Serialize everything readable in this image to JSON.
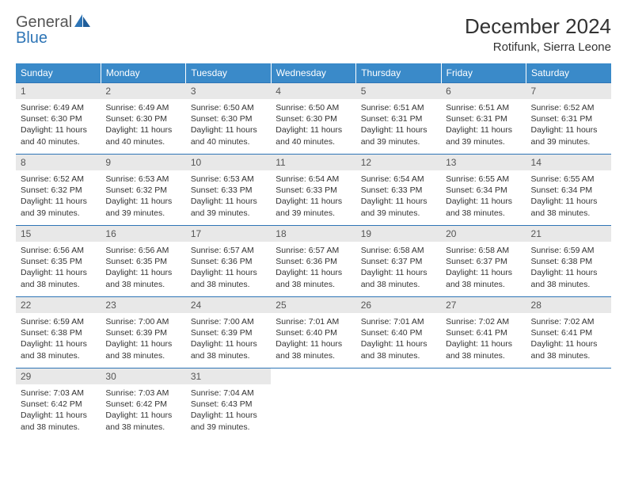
{
  "logo": {
    "general": "General",
    "blue": "Blue"
  },
  "title": "December 2024",
  "location": "Rotifunk, Sierra Leone",
  "colors": {
    "header_bg": "#3a8ac9",
    "header_text": "#ffffff",
    "border": "#2e75b6",
    "date_bg": "#e8e8e8",
    "body_text": "#333333",
    "logo_blue": "#2e75b6",
    "logo_gray": "#555555"
  },
  "day_names": [
    "Sunday",
    "Monday",
    "Tuesday",
    "Wednesday",
    "Thursday",
    "Friday",
    "Saturday"
  ],
  "labels": {
    "sunrise": "Sunrise:",
    "sunset": "Sunset:",
    "daylight": "Daylight:"
  },
  "days": [
    {
      "n": 1,
      "sunrise": "6:49 AM",
      "sunset": "6:30 PM",
      "daylight": "11 hours and 40 minutes."
    },
    {
      "n": 2,
      "sunrise": "6:49 AM",
      "sunset": "6:30 PM",
      "daylight": "11 hours and 40 minutes."
    },
    {
      "n": 3,
      "sunrise": "6:50 AM",
      "sunset": "6:30 PM",
      "daylight": "11 hours and 40 minutes."
    },
    {
      "n": 4,
      "sunrise": "6:50 AM",
      "sunset": "6:30 PM",
      "daylight": "11 hours and 40 minutes."
    },
    {
      "n": 5,
      "sunrise": "6:51 AM",
      "sunset": "6:31 PM",
      "daylight": "11 hours and 39 minutes."
    },
    {
      "n": 6,
      "sunrise": "6:51 AM",
      "sunset": "6:31 PM",
      "daylight": "11 hours and 39 minutes."
    },
    {
      "n": 7,
      "sunrise": "6:52 AM",
      "sunset": "6:31 PM",
      "daylight": "11 hours and 39 minutes."
    },
    {
      "n": 8,
      "sunrise": "6:52 AM",
      "sunset": "6:32 PM",
      "daylight": "11 hours and 39 minutes."
    },
    {
      "n": 9,
      "sunrise": "6:53 AM",
      "sunset": "6:32 PM",
      "daylight": "11 hours and 39 minutes."
    },
    {
      "n": 10,
      "sunrise": "6:53 AM",
      "sunset": "6:33 PM",
      "daylight": "11 hours and 39 minutes."
    },
    {
      "n": 11,
      "sunrise": "6:54 AM",
      "sunset": "6:33 PM",
      "daylight": "11 hours and 39 minutes."
    },
    {
      "n": 12,
      "sunrise": "6:54 AM",
      "sunset": "6:33 PM",
      "daylight": "11 hours and 39 minutes."
    },
    {
      "n": 13,
      "sunrise": "6:55 AM",
      "sunset": "6:34 PM",
      "daylight": "11 hours and 38 minutes."
    },
    {
      "n": 14,
      "sunrise": "6:55 AM",
      "sunset": "6:34 PM",
      "daylight": "11 hours and 38 minutes."
    },
    {
      "n": 15,
      "sunrise": "6:56 AM",
      "sunset": "6:35 PM",
      "daylight": "11 hours and 38 minutes."
    },
    {
      "n": 16,
      "sunrise": "6:56 AM",
      "sunset": "6:35 PM",
      "daylight": "11 hours and 38 minutes."
    },
    {
      "n": 17,
      "sunrise": "6:57 AM",
      "sunset": "6:36 PM",
      "daylight": "11 hours and 38 minutes."
    },
    {
      "n": 18,
      "sunrise": "6:57 AM",
      "sunset": "6:36 PM",
      "daylight": "11 hours and 38 minutes."
    },
    {
      "n": 19,
      "sunrise": "6:58 AM",
      "sunset": "6:37 PM",
      "daylight": "11 hours and 38 minutes."
    },
    {
      "n": 20,
      "sunrise": "6:58 AM",
      "sunset": "6:37 PM",
      "daylight": "11 hours and 38 minutes."
    },
    {
      "n": 21,
      "sunrise": "6:59 AM",
      "sunset": "6:38 PM",
      "daylight": "11 hours and 38 minutes."
    },
    {
      "n": 22,
      "sunrise": "6:59 AM",
      "sunset": "6:38 PM",
      "daylight": "11 hours and 38 minutes."
    },
    {
      "n": 23,
      "sunrise": "7:00 AM",
      "sunset": "6:39 PM",
      "daylight": "11 hours and 38 minutes."
    },
    {
      "n": 24,
      "sunrise": "7:00 AM",
      "sunset": "6:39 PM",
      "daylight": "11 hours and 38 minutes."
    },
    {
      "n": 25,
      "sunrise": "7:01 AM",
      "sunset": "6:40 PM",
      "daylight": "11 hours and 38 minutes."
    },
    {
      "n": 26,
      "sunrise": "7:01 AM",
      "sunset": "6:40 PM",
      "daylight": "11 hours and 38 minutes."
    },
    {
      "n": 27,
      "sunrise": "7:02 AM",
      "sunset": "6:41 PM",
      "daylight": "11 hours and 38 minutes."
    },
    {
      "n": 28,
      "sunrise": "7:02 AM",
      "sunset": "6:41 PM",
      "daylight": "11 hours and 38 minutes."
    },
    {
      "n": 29,
      "sunrise": "7:03 AM",
      "sunset": "6:42 PM",
      "daylight": "11 hours and 38 minutes."
    },
    {
      "n": 30,
      "sunrise": "7:03 AM",
      "sunset": "6:42 PM",
      "daylight": "11 hours and 38 minutes."
    },
    {
      "n": 31,
      "sunrise": "7:04 AM",
      "sunset": "6:43 PM",
      "daylight": "11 hours and 39 minutes."
    }
  ],
  "grid": {
    "leading_blanks": 0,
    "trailing_blanks": 4,
    "columns": 7
  }
}
